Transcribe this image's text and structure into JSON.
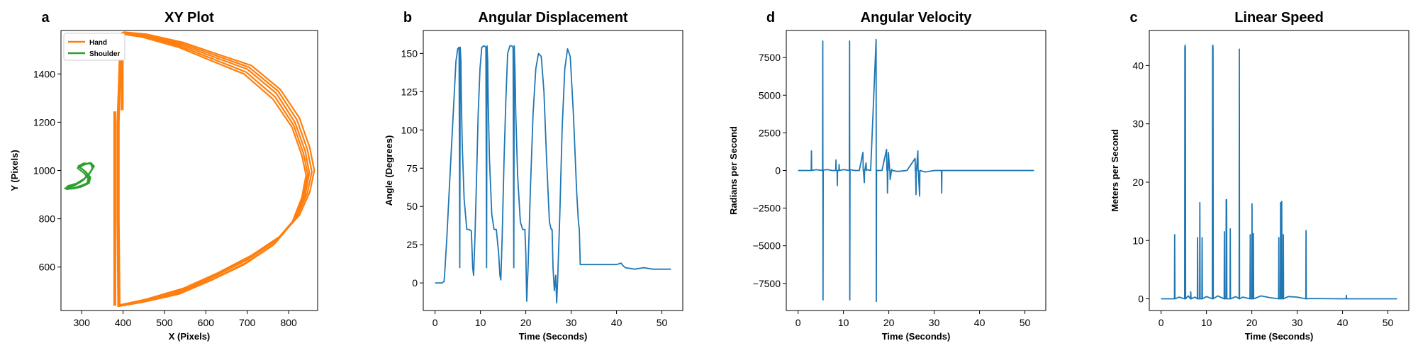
{
  "chart_data": [
    {
      "panel": "a",
      "type": "line",
      "title": "XY Plot",
      "xlabel": "X (Pixels)",
      "ylabel": "Y (Pixels)",
      "xlim": [
        250,
        870
      ],
      "ylim": [
        420,
        1580
      ],
      "xticks": [
        300,
        400,
        500,
        600,
        700,
        800
      ],
      "yticks": [
        600,
        800,
        1000,
        1200,
        1400
      ],
      "legend": {
        "position": "top-left",
        "entries": [
          "Hand",
          "Shoulder"
        ]
      },
      "grid": false,
      "series": [
        {
          "name": "Hand",
          "color": "#ff7f0e",
          "loops": [
            {
              "x": [
                395,
                400,
                450,
                540,
                620,
                700,
                770,
                815,
                840,
                850,
                840,
                815,
                770,
                700,
                620,
                540,
                450,
                390,
                388,
                388,
                395
              ],
              "y": [
                1565,
                1570,
                1560,
                1520,
                1470,
                1420,
                1320,
                1200,
                1080,
                990,
                900,
                800,
                710,
                630,
                560,
                500,
                460,
                440,
                800,
                1200,
                1565
              ]
            },
            {
              "x": [
                393,
                398,
                448,
                537,
                617,
                697,
                767,
                812,
                836,
                846,
                836,
                812,
                767,
                697,
                617,
                537,
                448,
                389,
                387,
                387,
                393
              ],
              "y": [
                1562,
                1567,
                1557,
                1515,
                1462,
                1408,
                1305,
                1188,
                1070,
                985,
                893,
                790,
                698,
                618,
                550,
                493,
                457,
                438,
                800,
                1200,
                1562
              ]
            },
            {
              "x": [
                396,
                401,
                452,
                543,
                624,
                704,
                775,
                820,
                845,
                856,
                845,
                820,
                775,
                704,
                624,
                543,
                452,
                391,
                389,
                389,
                396
              ],
              "y": [
                1568,
                1572,
                1562,
                1525,
                1476,
                1428,
                1328,
                1210,
                1088,
                995,
                905,
                808,
                720,
                640,
                568,
                506,
                462,
                441,
                800,
                1200,
                1568
              ]
            },
            {
              "x": [
                394,
                399,
                446,
                535,
                613,
                692,
                762,
                808,
                832,
                842,
                832,
                808,
                762,
                692,
                613,
                535,
                446,
                388,
                386,
                386,
                394
              ],
              "y": [
                1560,
                1565,
                1553,
                1510,
                1455,
                1400,
                1296,
                1180,
                1062,
                980,
                888,
                783,
                690,
                610,
                545,
                488,
                454,
                437,
                800,
                1200,
                1560
              ]
            },
            {
              "x": [
                397,
                402,
                455,
                546,
                628,
                710,
                780,
                826,
                851,
                862,
                851,
                826,
                780,
                710,
                628,
                546,
                455,
                392,
                390,
                390,
                397
              ],
              "y": [
                1570,
                1573,
                1565,
                1530,
                1482,
                1435,
                1335,
                1218,
                1095,
                1000,
                910,
                815,
                728,
                648,
                575,
                512,
                466,
                443,
                800,
                1200,
                1570
              ]
            }
          ],
          "extra_segments": [
            {
              "x": [
                380,
                380
              ],
              "y": [
                1245,
                440
              ]
            },
            {
              "x": [
                398,
                398
              ],
              "y": [
                1570,
                1250
              ]
            }
          ]
        },
        {
          "name": "Shoulder",
          "color": "#2ca02c",
          "loops": [
            {
              "x": [
                258,
                280,
                300,
                318,
                326,
                322,
                305,
                292,
                306,
                318,
                316,
                300,
                282,
                262
              ],
              "y": [
                925,
                935,
                955,
                985,
                1010,
                1028,
                1030,
                1018,
                1000,
                975,
                950,
                938,
                928,
                922
              ]
            },
            {
              "x": [
                262,
                284,
                304,
                320,
                328,
                324,
                308,
                295,
                309,
                321,
                318,
                302,
                285,
                266
              ],
              "y": [
                930,
                940,
                960,
                990,
                1014,
                1030,
                1026,
                1014,
                996,
                972,
                948,
                935,
                927,
                923
              ]
            },
            {
              "x": [
                265,
                287,
                306,
                322,
                330,
                320,
                303,
                290,
                304,
                316,
                313,
                298,
                280,
                264
              ],
              "y": [
                935,
                946,
                966,
                995,
                1018,
                1032,
                1022,
                1010,
                992,
                968,
                944,
                932,
                925,
                924
              ]
            }
          ]
        }
      ]
    },
    {
      "panel": "b",
      "type": "line",
      "title": "Angular Displacement",
      "xlabel": "Time (Seconds)",
      "ylabel": "Angle (Degrees)",
      "xlim": [
        -2.6,
        54.6
      ],
      "ylim": [
        -18,
        165
      ],
      "xticks": [
        0,
        10,
        20,
        30,
        40,
        50
      ],
      "yticks": [
        0,
        25,
        50,
        75,
        100,
        125,
        150
      ],
      "grid": false,
      "series": [
        {
          "name": "",
          "color": "#1f77b4",
          "x": [
            0,
            1.5,
            2.0,
            2.2,
            2.6,
            3.2,
            4.0,
            4.6,
            5.0,
            5.3,
            5.45,
            5.55,
            5.7,
            5.8,
            6.0,
            6.4,
            7.0,
            7.5,
            8.0,
            8.3,
            8.5,
            8.8,
            9.2,
            9.5,
            9.9,
            10.3,
            10.8,
            11.2,
            11.35,
            11.45,
            11.6,
            11.7,
            12.0,
            12.5,
            13.0,
            13.5,
            14.0,
            14.3,
            14.5,
            14.8,
            15.2,
            15.6,
            16.0,
            16.5,
            16.9,
            17.2,
            17.35,
            17.45,
            17.6,
            17.8,
            18.2,
            18.8,
            19.3,
            19.8,
            20.0,
            20.2,
            20.5,
            21.0,
            21.6,
            22.2,
            22.8,
            23.4,
            24.0,
            24.6,
            25.2,
            25.6,
            25.8,
            26.0,
            26.3,
            26.6,
            26.8,
            27.0,
            27.5,
            28.0,
            28.6,
            29.2,
            29.8,
            30.5,
            31.2,
            31.6,
            31.8,
            32.0,
            33.0,
            35.0,
            40.0,
            41.0,
            41.5,
            42.0,
            44.0,
            46.0,
            48.0,
            50.0,
            52.0
          ],
          "y": [
            0,
            0,
            1,
            10,
            30,
            65,
            110,
            145,
            153,
            154,
            10,
            154,
            145,
            120,
            90,
            55,
            35,
            35,
            34,
            10,
            5,
            30,
            75,
            110,
            140,
            154,
            155,
            154,
            10,
            155,
            145,
            120,
            80,
            45,
            35,
            35,
            20,
            5,
            2,
            30,
            80,
            120,
            150,
            155,
            155,
            154,
            10,
            155,
            140,
            110,
            70,
            40,
            35,
            35,
            20,
            -12,
            10,
            60,
            110,
            140,
            150,
            148,
            125,
            80,
            40,
            35,
            35,
            10,
            -5,
            5,
            -13,
            0,
            45,
            100,
            140,
            153,
            148,
            110,
            60,
            40,
            35,
            12,
            12,
            12,
            12,
            13,
            11,
            10,
            9,
            10,
            9,
            9,
            9
          ]
        }
      ]
    },
    {
      "panel": "d",
      "type": "line",
      "title": "Angular Velocity",
      "xlabel": "Time (Seconds)",
      "ylabel": "Radians per Second",
      "xlim": [
        -2.6,
        54.6
      ],
      "ylim": [
        -9300,
        9300
      ],
      "xticks": [
        0,
        10,
        20,
        30,
        40,
        50
      ],
      "yticks": [
        -7500,
        -5000,
        -2500,
        0,
        2500,
        5000,
        7500
      ],
      "grid": false,
      "series": [
        {
          "name": "",
          "color": "#1f77b4",
          "x": [
            0,
            2.5,
            2.9,
            2.95,
            3.0,
            4.0,
            5.4,
            5.45,
            5.5,
            5.55,
            5.6,
            6.5,
            7.5,
            8.3,
            8.35,
            8.4,
            8.6,
            8.65,
            8.7,
            9.0,
            9.05,
            9.1,
            10.0,
            11.3,
            11.35,
            11.4,
            11.45,
            11.5,
            12.5,
            13.5,
            14.3,
            14.35,
            14.4,
            14.6,
            14.65,
            14.7,
            15.0,
            15.05,
            15.1,
            16.0,
            17.2,
            17.25,
            17.3,
            17.35,
            17.4,
            18.5,
            19.5,
            19.6,
            19.65,
            19.7,
            19.8,
            19.85,
            19.9,
            20.2,
            20.25,
            20.3,
            20.6,
            20.65,
            20.7,
            22.0,
            24.0,
            25.8,
            25.85,
            25.9,
            26.0,
            26.05,
            26.1,
            26.4,
            26.45,
            26.5,
            26.8,
            26.85,
            26.9,
            28.0,
            30.0,
            31.6,
            31.65,
            31.7,
            31.8,
            32.0,
            40.0,
            52.0
          ],
          "y": [
            0,
            0,
            0,
            1300,
            0,
            50,
            0,
            8600,
            -8600,
            0,
            30,
            60,
            0,
            0,
            700,
            0,
            0,
            -1000,
            0,
            0,
            400,
            0,
            60,
            0,
            8600,
            -8600,
            0,
            50,
            0,
            0,
            1200,
            0,
            0,
            -800,
            0,
            0,
            500,
            0,
            60,
            0,
            8700,
            -8700,
            0,
            30,
            0,
            0,
            1400,
            0,
            0,
            -1500,
            0,
            0,
            1200,
            0,
            0,
            -600,
            0,
            80,
            0,
            -60,
            0,
            800,
            0,
            0,
            -1600,
            0,
            0,
            1300,
            0,
            0,
            -1700,
            0,
            0,
            -100,
            0,
            0,
            -1500,
            0,
            0,
            0,
            0,
            0
          ]
        }
      ]
    },
    {
      "panel": "c",
      "type": "line",
      "title": "Linear Speed",
      "xlabel": "Time (Seconds)",
      "ylabel": "Meters per Second",
      "xlim": [
        -2.6,
        54.6
      ],
      "ylim": [
        -2,
        46
      ],
      "xticks": [
        0,
        10,
        20,
        30,
        40,
        50
      ],
      "yticks": [
        0,
        10,
        20,
        30,
        40
      ],
      "grid": false,
      "series": [
        {
          "name": "",
          "color": "#1f77b4",
          "x": [
            0,
            2.5,
            2.95,
            3.0,
            3.05,
            4.0,
            5.2,
            5.25,
            5.3,
            5.35,
            5.4,
            6.0,
            6.5,
            6.55,
            6.6,
            7.5,
            8.0,
            8.05,
            8.1,
            8.5,
            8.55,
            8.6,
            9.0,
            9.05,
            9.1,
            10.0,
            11.3,
            11.35,
            11.4,
            11.45,
            11.5,
            12.5,
            13.9,
            13.95,
            14.0,
            14.3,
            14.35,
            14.4,
            14.45,
            14.5,
            15.2,
            15.25,
            15.3,
            16.5,
            17.2,
            17.25,
            17.3,
            18.0,
            19.6,
            19.65,
            19.7,
            20.0,
            20.05,
            20.1,
            20.3,
            20.35,
            20.4,
            22.0,
            24.0,
            25.9,
            25.95,
            26.0,
            26.3,
            26.35,
            26.4,
            26.55,
            26.6,
            26.65,
            26.9,
            26.95,
            27.0,
            28.0,
            30.0,
            31.9,
            31.95,
            32.0,
            33.0,
            40.0,
            40.8,
            40.85,
            40.9,
            52.0
          ],
          "y": [
            0,
            0,
            0,
            11,
            0,
            0.3,
            0,
            43,
            43.5,
            43,
            0,
            0.5,
            0,
            1.2,
            0,
            0.3,
            0,
            10.5,
            0,
            0,
            16.5,
            0,
            0,
            10.5,
            0,
            0.4,
            0,
            43.2,
            43.5,
            43,
            0,
            0.5,
            0,
            11.5,
            0,
            0,
            17,
            17,
            17,
            0,
            0,
            12,
            0,
            0.4,
            0,
            42.8,
            0,
            0.3,
            0,
            11,
            0,
            0,
            16.3,
            0,
            0,
            11.2,
            0,
            0.5,
            0.2,
            0,
            10.5,
            0,
            0,
            16.5,
            0,
            0,
            16.7,
            0,
            0,
            11,
            0,
            0.4,
            0.3,
            0,
            11.7,
            0,
            0.05,
            0,
            0,
            0.6,
            0,
            0
          ]
        }
      ]
    }
  ]
}
